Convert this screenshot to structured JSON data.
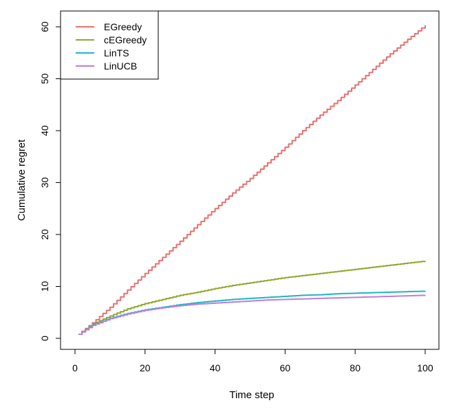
{
  "chart_data": {
    "type": "line",
    "title": "",
    "xlabel": "Time step",
    "ylabel": "Cumulative regret",
    "xlim": [
      1,
      100
    ],
    "ylim": [
      0,
      60
    ],
    "xticks": [
      0,
      20,
      40,
      60,
      80,
      100
    ],
    "yticks": [
      0,
      10,
      20,
      30,
      40,
      50,
      60
    ],
    "grid": false,
    "legend_position": "top-left",
    "series": [
      {
        "name": "EGreedy",
        "color": "#E8706E",
        "x": [
          1,
          5,
          10,
          15,
          20,
          25,
          30,
          35,
          40,
          45,
          50,
          55,
          60,
          65,
          70,
          75,
          80,
          85,
          90,
          95,
          100
        ],
        "y": [
          0.8,
          3.0,
          6.0,
          9.3,
          12.5,
          15.6,
          18.7,
          21.9,
          25.0,
          28.0,
          30.8,
          33.8,
          36.8,
          40.0,
          43.0,
          45.8,
          48.8,
          51.8,
          54.8,
          57.6,
          60.3
        ]
      },
      {
        "name": "cEGreedy",
        "color": "#8FA829",
        "x": [
          1,
          5,
          10,
          15,
          20,
          25,
          30,
          35,
          40,
          45,
          50,
          55,
          60,
          65,
          70,
          75,
          80,
          85,
          90,
          95,
          100
        ],
        "y": [
          0.8,
          2.8,
          4.3,
          5.7,
          6.7,
          7.5,
          8.3,
          8.9,
          9.6,
          10.2,
          10.7,
          11.2,
          11.7,
          12.1,
          12.5,
          12.9,
          13.3,
          13.7,
          14.1,
          14.5,
          14.9
        ]
      },
      {
        "name": "LinTS",
        "color": "#1FB4C7",
        "x": [
          1,
          5,
          10,
          15,
          20,
          25,
          30,
          35,
          40,
          45,
          50,
          55,
          60,
          65,
          70,
          75,
          80,
          85,
          90,
          95,
          100
        ],
        "y": [
          0.8,
          2.6,
          3.9,
          4.8,
          5.5,
          6.0,
          6.5,
          6.9,
          7.2,
          7.5,
          7.7,
          7.9,
          8.1,
          8.3,
          8.4,
          8.6,
          8.7,
          8.8,
          8.9,
          9.0,
          9.1
        ]
      },
      {
        "name": "LinUCB",
        "color": "#B87FE0",
        "x": [
          1,
          5,
          10,
          15,
          20,
          25,
          30,
          35,
          40,
          45,
          50,
          55,
          60,
          65,
          70,
          75,
          80,
          85,
          90,
          95,
          100
        ],
        "y": [
          0.8,
          2.5,
          3.8,
          4.7,
          5.4,
          5.9,
          6.3,
          6.6,
          6.8,
          7.0,
          7.2,
          7.4,
          7.5,
          7.6,
          7.7,
          7.8,
          7.9,
          8.0,
          8.1,
          8.2,
          8.3
        ]
      }
    ]
  }
}
